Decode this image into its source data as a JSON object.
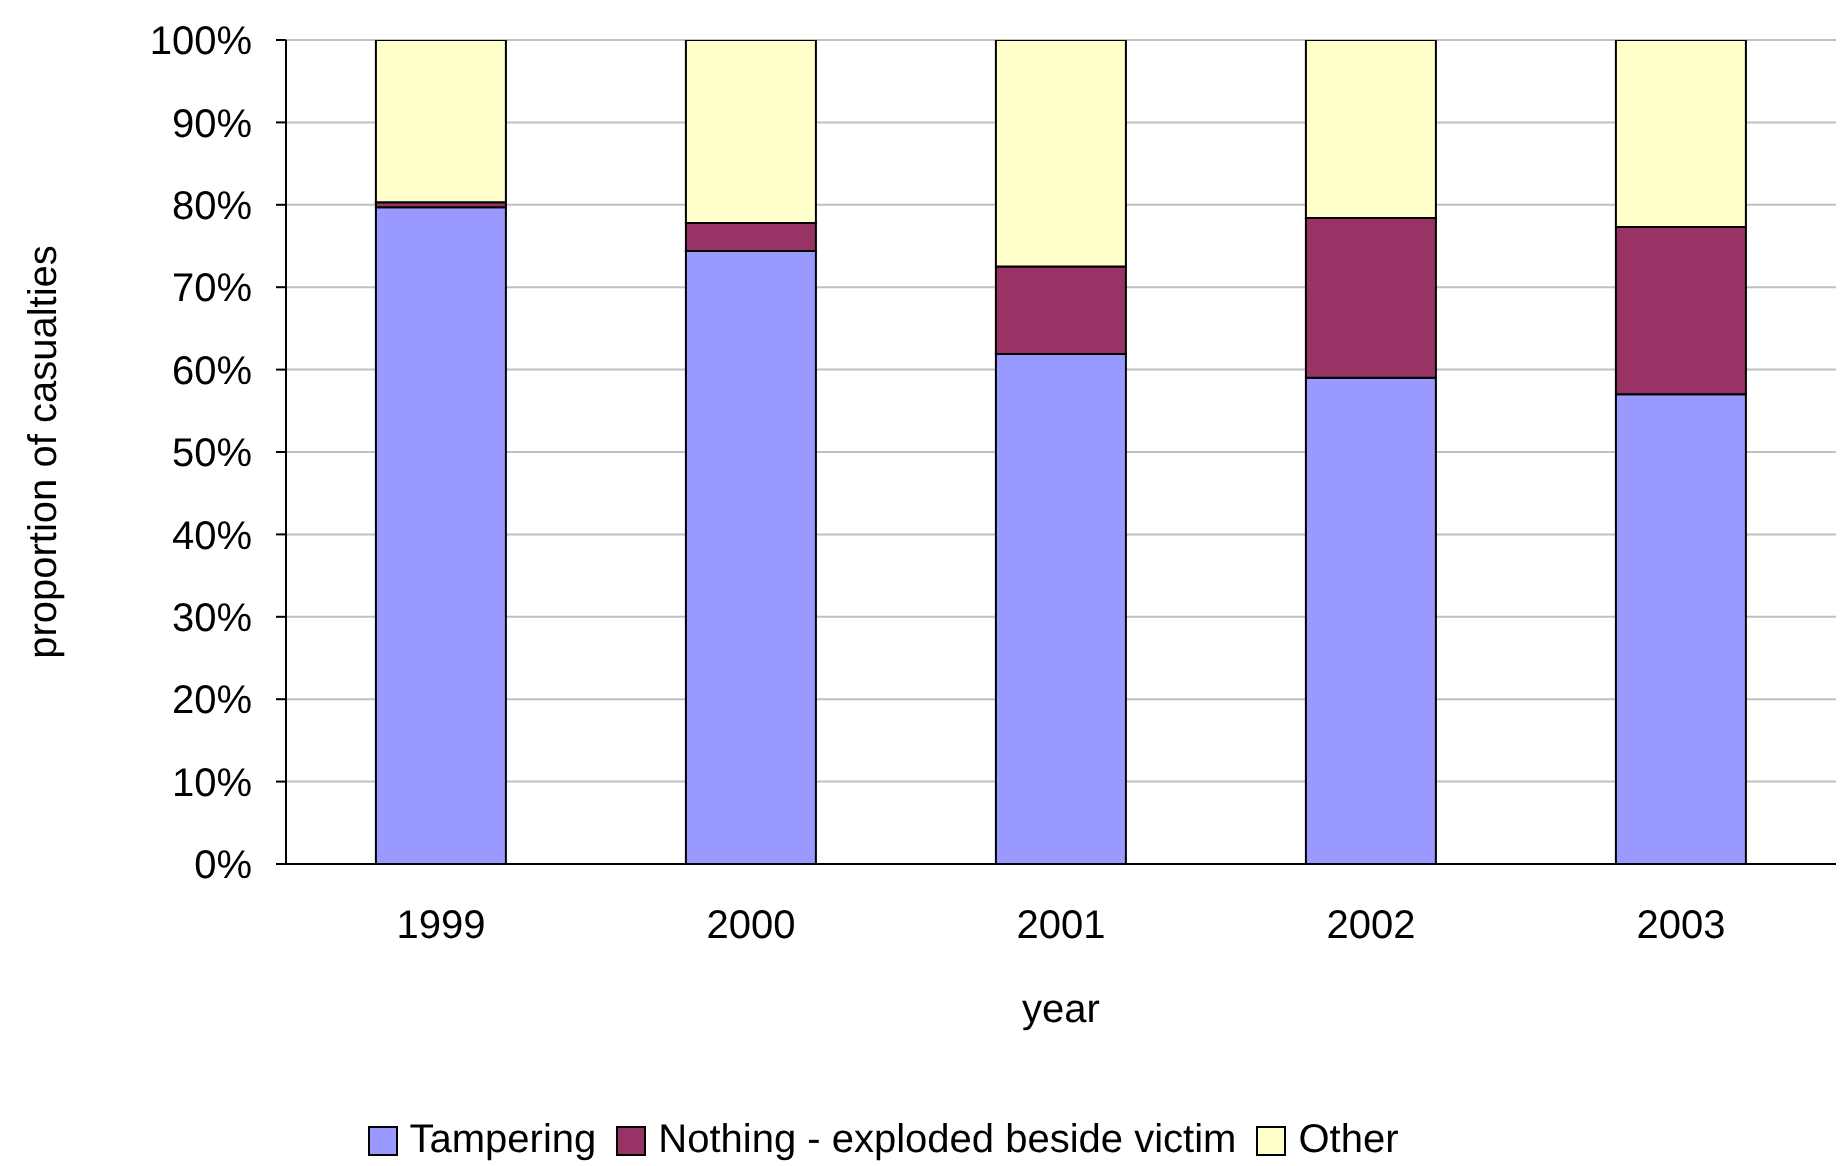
{
  "chart_data": {
    "type": "bar",
    "xlabel": "year",
    "ylabel": "proportion of casualties",
    "categories": [
      "1999",
      "2000",
      "2001",
      "2002",
      "2003"
    ],
    "series": [
      {
        "name": "Tampering",
        "color": "#9999ff",
        "values": [
          79.7,
          74.4,
          61.9,
          59.0,
          57.0
        ]
      },
      {
        "name": "Nothing - exploded beside victim",
        "color": "#993366",
        "values": [
          0.6,
          3.4,
          10.6,
          19.4,
          20.3
        ]
      },
      {
        "name": "Other",
        "color": "#ffffcc",
        "values": [
          19.7,
          22.2,
          27.5,
          21.6,
          22.7
        ]
      }
    ],
    "stacked": true,
    "ylim": [
      0,
      100
    ],
    "yticks": [
      {
        "value": 0,
        "label": "0%"
      },
      {
        "value": 10,
        "label": "10%"
      },
      {
        "value": 20,
        "label": "20%"
      },
      {
        "value": 30,
        "label": "30%"
      },
      {
        "value": 40,
        "label": "40%"
      },
      {
        "value": 50,
        "label": "50%"
      },
      {
        "value": 60,
        "label": "60%"
      },
      {
        "value": 70,
        "label": "70%"
      },
      {
        "value": 80,
        "label": "80%"
      },
      {
        "value": 90,
        "label": "90%"
      },
      {
        "value": 100,
        "label": "100%"
      }
    ],
    "grid": "y",
    "legend": "bottom"
  }
}
